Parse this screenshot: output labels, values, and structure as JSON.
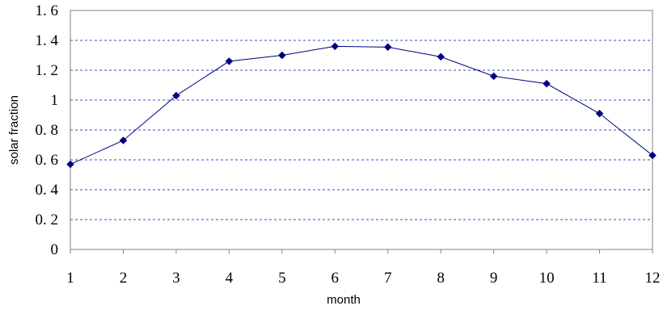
{
  "chart_data": {
    "type": "line",
    "title": "",
    "xlabel": "month",
    "ylabel": "solar fraction",
    "x": [
      1,
      2,
      3,
      4,
      5,
      6,
      7,
      8,
      9,
      10,
      11,
      12
    ],
    "xlim": [
      1,
      12
    ],
    "ylim": [
      0,
      1.6
    ],
    "x_tick_labels": [
      "1",
      "2",
      "3",
      "4",
      "5",
      "6",
      "7",
      "8",
      "9",
      "10",
      "11",
      "12"
    ],
    "y_ticks": [
      0,
      0.2,
      0.4,
      0.6,
      0.8,
      1,
      1.2,
      1.4,
      1.6
    ],
    "y_tick_labels": [
      "0",
      "0. 2",
      "0. 4",
      "0. 6",
      "0. 8",
      "1",
      "1. 2",
      "1. 4",
      "1. 6"
    ],
    "grid": "horizontal dashed",
    "legend": "none",
    "series": [
      {
        "values": [
          0.57,
          0.73,
          1.03,
          1.26,
          1.3,
          1.36,
          1.355,
          1.29,
          1.16,
          1.11,
          0.91,
          0.63
        ],
        "color": "#000080",
        "marker": "diamond"
      }
    ],
    "colors": {
      "grid": "#2f4fbf",
      "axis": "#808080",
      "series": "#000080"
    }
  }
}
